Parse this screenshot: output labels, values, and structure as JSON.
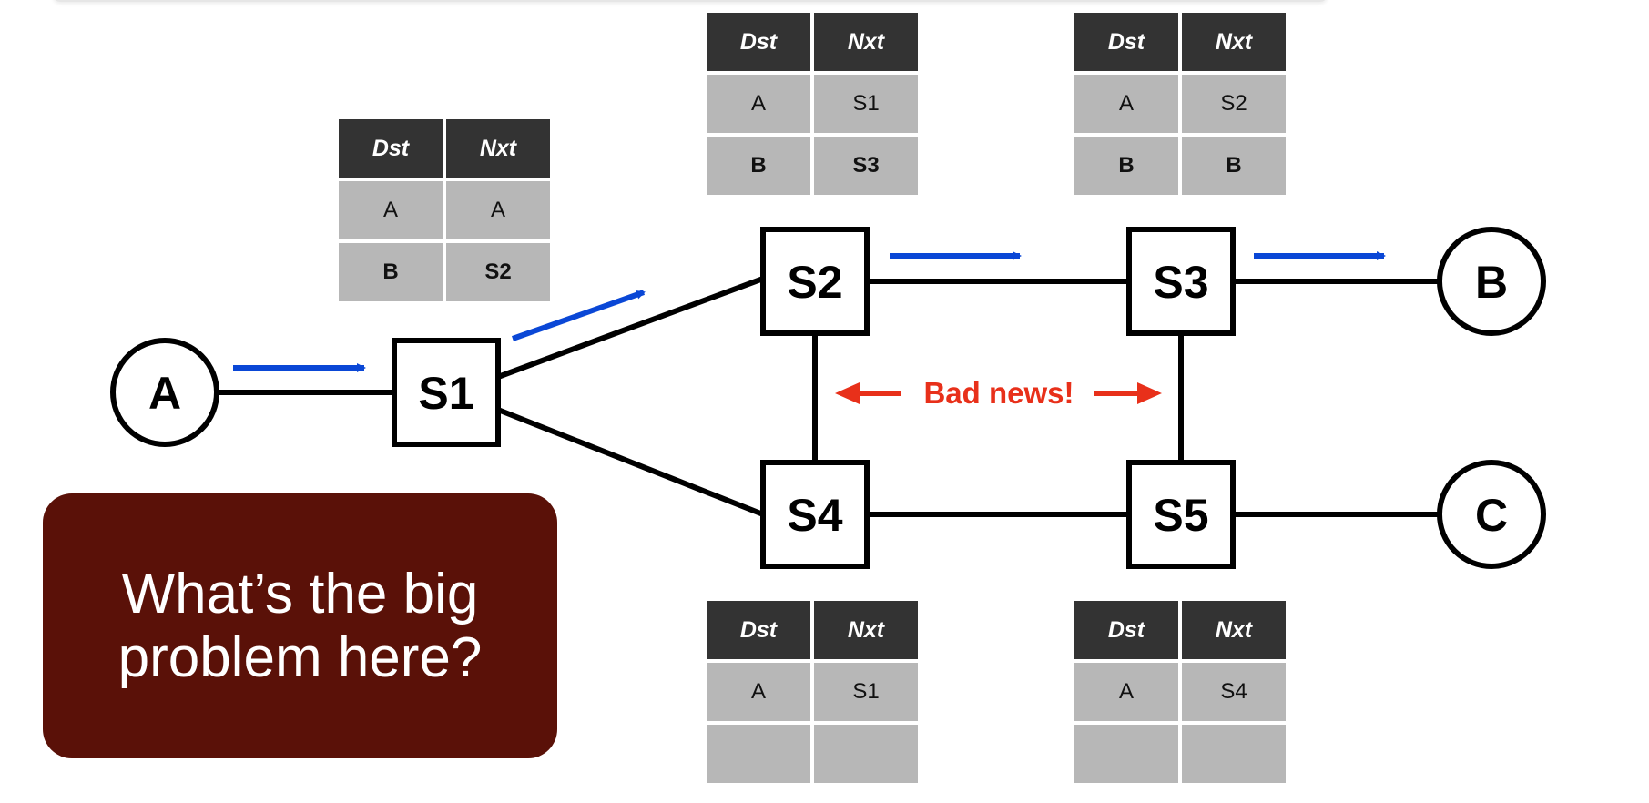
{
  "colors": {
    "arrow": "#0a47d6",
    "warning": "#e8301a",
    "question_box": "#5a1108",
    "table_header": "#333333",
    "table_cell": "#b7b7b7"
  },
  "hosts": {
    "a": "A",
    "b": "B",
    "c": "C"
  },
  "switches": {
    "s1": "S1",
    "s2": "S2",
    "s3": "S3",
    "s4": "S4",
    "s5": "S5"
  },
  "warning_text": "Bad news!",
  "question": "What’s the big problem here?",
  "tables": {
    "s1": {
      "headers": [
        "Dst",
        "Nxt"
      ],
      "rows": [
        [
          "A",
          "A"
        ],
        [
          "B",
          "S2"
        ]
      ]
    },
    "s2": {
      "headers": [
        "Dst",
        "Nxt"
      ],
      "rows": [
        [
          "A",
          "S1"
        ],
        [
          "B",
          "S3"
        ]
      ]
    },
    "s3": {
      "headers": [
        "Dst",
        "Nxt"
      ],
      "rows": [
        [
          "A",
          "S2"
        ],
        [
          "B",
          "B"
        ]
      ]
    },
    "s4": {
      "headers": [
        "Dst",
        "Nxt"
      ],
      "rows": [
        [
          "A",
          "S1"
        ],
        [
          "",
          ""
        ]
      ]
    },
    "s5": {
      "headers": [
        "Dst",
        "Nxt"
      ],
      "rows": [
        [
          "A",
          "S4"
        ],
        [
          "",
          ""
        ]
      ]
    }
  }
}
